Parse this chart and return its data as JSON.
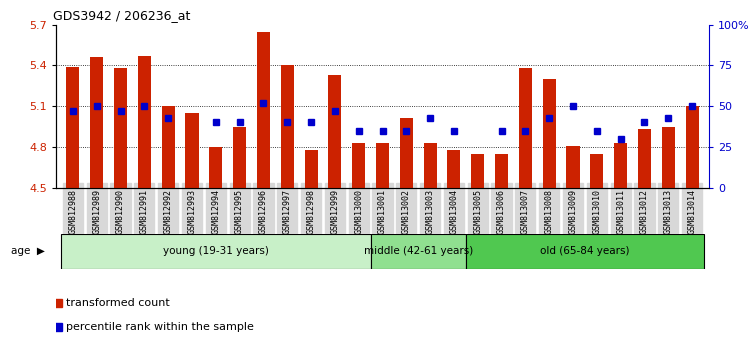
{
  "title": "GDS3942 / 206236_at",
  "samples": [
    "GSM812988",
    "GSM812989",
    "GSM812990",
    "GSM812991",
    "GSM812992",
    "GSM812993",
    "GSM812994",
    "GSM812995",
    "GSM812996",
    "GSM812997",
    "GSM812998",
    "GSM812999",
    "GSM813000",
    "GSM813001",
    "GSM813002",
    "GSM813003",
    "GSM813004",
    "GSM813005",
    "GSM813006",
    "GSM813007",
    "GSM813008",
    "GSM813009",
    "GSM813010",
    "GSM813011",
    "GSM813012",
    "GSM813013",
    "GSM813014"
  ],
  "red_values": [
    5.39,
    5.46,
    5.38,
    5.47,
    5.1,
    5.05,
    4.8,
    4.95,
    5.65,
    5.4,
    4.78,
    5.33,
    4.83,
    4.83,
    5.01,
    4.83,
    4.78,
    4.75,
    4.75,
    5.38,
    5.3,
    4.81,
    4.75,
    4.83,
    4.93,
    4.95,
    5.1
  ],
  "blue_percentiles": [
    47,
    50,
    47,
    50,
    43,
    null,
    40,
    40,
    52,
    40,
    40,
    47,
    35,
    35,
    35,
    43,
    35,
    null,
    35,
    35,
    43,
    50,
    35,
    30,
    40,
    43,
    50
  ],
  "ymin": 4.5,
  "ymax": 5.7,
  "yticks_left": [
    4.5,
    4.8,
    5.1,
    5.4,
    5.7
  ],
  "yticks_right_pct": [
    0,
    25,
    50,
    75,
    100
  ],
  "right_yticklabels": [
    "0",
    "25",
    "50",
    "75",
    "100%"
  ],
  "groups": [
    {
      "label": "young (19-31 years)",
      "start": 0,
      "end": 13,
      "color": "#c8f0c8"
    },
    {
      "label": "middle (42-61 years)",
      "start": 13,
      "end": 17,
      "color": "#90e090"
    },
    {
      "label": "old (65-84 years)",
      "start": 17,
      "end": 27,
      "color": "#50c850"
    }
  ],
  "bar_color": "#cc2200",
  "dot_color": "#0000cc",
  "bar_width": 0.55,
  "bar_bottom": 4.5,
  "legend_items": [
    {
      "label": "transformed count",
      "color": "#cc2200"
    },
    {
      "label": "percentile rank within the sample",
      "color": "#0000cc"
    }
  ],
  "bg_color": "#f0f0f0",
  "plot_bg": "#ffffff"
}
